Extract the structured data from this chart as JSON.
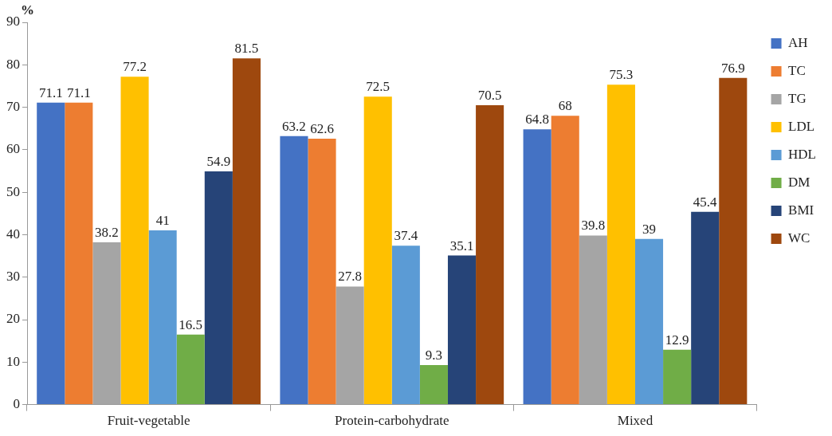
{
  "chart_data": {
    "type": "bar",
    "ylabel": "%",
    "categories": [
      "Fruit-vegetable",
      "Protein-carbohydrate",
      "Mixed"
    ],
    "series": [
      {
        "name": "AH",
        "color": "#4472c4",
        "values": [
          71.1,
          63.2,
          64.8
        ]
      },
      {
        "name": "TC",
        "color": "#ed7d31",
        "values": [
          71.1,
          62.6,
          68
        ]
      },
      {
        "name": "TG",
        "color": "#a5a5a5",
        "values": [
          38.2,
          27.8,
          39.8
        ]
      },
      {
        "name": "LDL",
        "color": "#ffc000",
        "values": [
          77.2,
          72.5,
          75.3
        ]
      },
      {
        "name": "HDL",
        "color": "#5b9bd5",
        "values": [
          41,
          37.4,
          39
        ]
      },
      {
        "name": "DM",
        "color": "#70ad47",
        "values": [
          16.5,
          9.3,
          12.9
        ]
      },
      {
        "name": "BMI",
        "color": "#264478",
        "values": [
          54.9,
          35.1,
          45.4
        ]
      },
      {
        "name": "WC",
        "color": "#9e480e",
        "values": [
          81.5,
          70.5,
          76.9
        ]
      }
    ],
    "ylim": [
      0,
      90
    ],
    "yticks": [
      0,
      10,
      20,
      30,
      40,
      50,
      60,
      70,
      80,
      90
    ],
    "grid": false,
    "legend": "right",
    "data_labels": true
  }
}
